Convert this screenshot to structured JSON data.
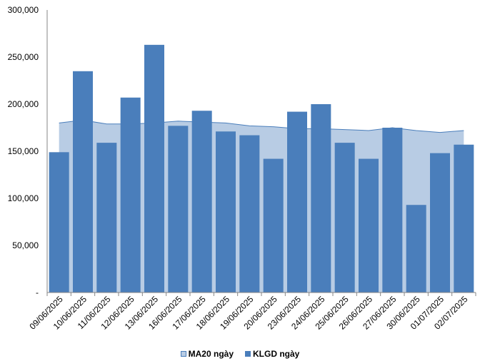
{
  "chart_data": {
    "type": "bar",
    "categories": [
      "09/06/2025",
      "10/06/2025",
      "11/06/2025",
      "12/06/2025",
      "13/06/2025",
      "16/06/2025",
      "17/06/2025",
      "18/06/2025",
      "19/06/2025",
      "20/06/2025",
      "23/06/2025",
      "24/06/2025",
      "25/06/2025",
      "26/06/2025",
      "27/06/2025",
      "30/06/2025",
      "01/07/2025",
      "02/07/2025"
    ],
    "series": [
      {
        "name": "MA20 ngày",
        "kind": "area",
        "color": "#b8cce4",
        "values": [
          180000,
          183000,
          179000,
          179000,
          180000,
          182000,
          181000,
          180000,
          177000,
          176000,
          174000,
          174000,
          173000,
          172000,
          175000,
          172000,
          170000,
          172000
        ]
      },
      {
        "name": "KLGD ngày",
        "kind": "bar",
        "color": "#4a7ebb",
        "values": [
          149000,
          235000,
          159000,
          207000,
          263000,
          177000,
          193000,
          171000,
          167000,
          142000,
          192000,
          200000,
          159000,
          142000,
          175000,
          93000,
          148000,
          157000
        ]
      }
    ],
    "yticks": [
      "-",
      "50,000",
      "100,000",
      "150,000",
      "200,000",
      "250,000",
      "300,000"
    ],
    "ylim": [
      0,
      300000
    ],
    "legend_position": "bottom"
  }
}
